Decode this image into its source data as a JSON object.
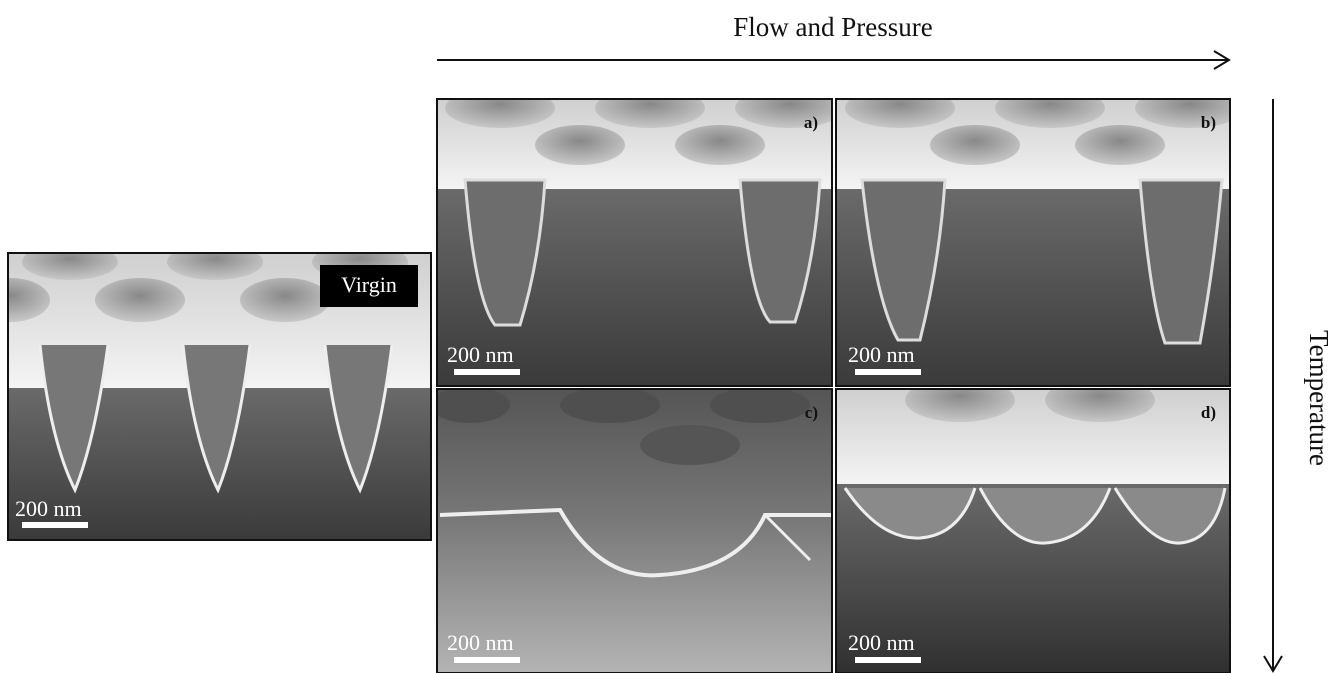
{
  "axes": {
    "horizontal": "Flow and Pressure",
    "vertical": "Temperature"
  },
  "panels": [
    {
      "label": "Virgin",
      "scale_bar": "200 nm"
    },
    {
      "label": "a)",
      "scale_bar": "200 nm"
    },
    {
      "label": "b)",
      "scale_bar": "200 nm"
    },
    {
      "label": "c)",
      "scale_bar": "200 nm"
    },
    {
      "label": "d)",
      "scale_bar": "200 nm"
    }
  ]
}
